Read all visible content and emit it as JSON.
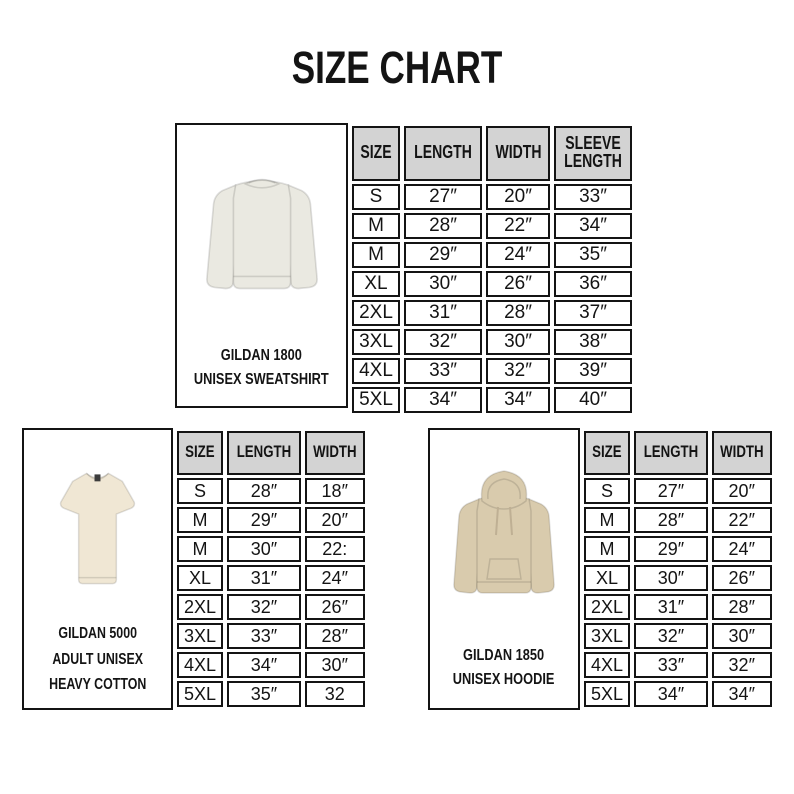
{
  "title": "SIZE CHART",
  "colors": {
    "table_header_bg": "#d3d3d3",
    "border_color": "#141414",
    "sweatshirt_color": "#eae9e1",
    "tshirt_color": "#f0e7d4",
    "hoodie_color": "#d9cbad"
  },
  "products": [
    {
      "id": "gildan-1800",
      "image": "sweatshirt",
      "label_lines": [
        "GILDAN 1800",
        "UNISEX SWEATSHIRT"
      ],
      "columns": [
        "SIZE",
        "LENGTH",
        "WIDTH",
        "SLEEVE LENGTH"
      ],
      "rows": [
        [
          "S",
          "27″",
          "20″",
          "33″"
        ],
        [
          "M",
          "28″",
          "22″",
          "34″"
        ],
        [
          "M",
          "29″",
          "24″",
          "35″"
        ],
        [
          "XL",
          "30″",
          "26″",
          "36″"
        ],
        [
          "2XL",
          "31″",
          "28″",
          "37″"
        ],
        [
          "3XL",
          "32″",
          "30″",
          "38″"
        ],
        [
          "4XL",
          "33″",
          "32″",
          "39″"
        ],
        [
          "5XL",
          "34″",
          "34″",
          "40″"
        ]
      ]
    },
    {
      "id": "gildan-5000",
      "image": "tshirt",
      "label_lines": [
        "GILDAN 5000",
        "ADULT UNISEX",
        "HEAVY COTTON"
      ],
      "columns": [
        "SIZE",
        "LENGTH",
        "WIDTH"
      ],
      "rows": [
        [
          "S",
          "28″",
          "18″"
        ],
        [
          "M",
          "29″",
          "20″"
        ],
        [
          "M",
          "30″",
          "22:"
        ],
        [
          "XL",
          "31″",
          "24″"
        ],
        [
          "2XL",
          "32″",
          "26″"
        ],
        [
          "3XL",
          "33″",
          "28″"
        ],
        [
          "4XL",
          "34″",
          "30″"
        ],
        [
          "5XL",
          "35″",
          "32"
        ]
      ]
    },
    {
      "id": "gildan-1850",
      "image": "hoodie",
      "label_lines": [
        "GILDAN 1850",
        "UNISEX HOODIE"
      ],
      "columns": [
        "SIZE",
        "LENGTH",
        "WIDTH"
      ],
      "rows": [
        [
          "S",
          "27″",
          "20″"
        ],
        [
          "M",
          "28″",
          "22″"
        ],
        [
          "M",
          "29″",
          "24″"
        ],
        [
          "XL",
          "30″",
          "26″"
        ],
        [
          "2XL",
          "31″",
          "28″"
        ],
        [
          "3XL",
          "32″",
          "30″"
        ],
        [
          "4XL",
          "33″",
          "32″"
        ],
        [
          "5XL",
          "34″",
          "34″"
        ]
      ]
    }
  ]
}
